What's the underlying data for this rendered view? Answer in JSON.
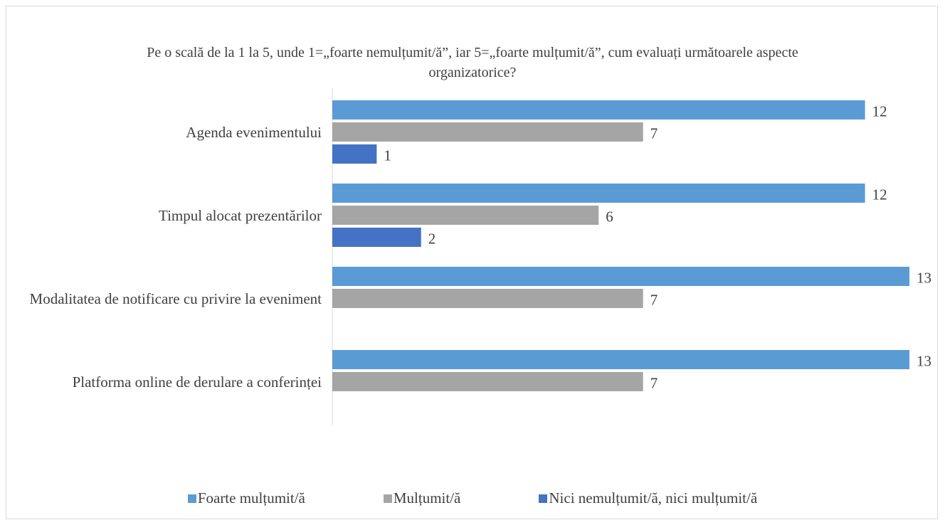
{
  "chart_data": {
    "type": "bar",
    "orientation": "horizontal",
    "title": "Pe o scală de la 1 la 5, unde 1=„foarte nemulțumit/ă”, iar 5=„foarte mulțumit/ă”, cum evaluați următoarele aspecte organizatorice?",
    "categories": [
      "Agenda evenimentului",
      "Timpul alocat prezentărilor",
      "Modalitatea de notificare cu privire la eveniment",
      "Platforma online de derulare a conferinței"
    ],
    "series": [
      {
        "name": "Foarte mulțumit/ă",
        "color": "#5b9bd5",
        "values": [
          12,
          12,
          13,
          13
        ]
      },
      {
        "name": "Mulțumit/ă",
        "color": "#a5a5a5",
        "values": [
          7,
          6,
          7,
          7
        ]
      },
      {
        "name": "Nici nemulțumit/ă, nici mulțumit/ă",
        "color": "#4472c4",
        "values": [
          1,
          2,
          null,
          null
        ]
      }
    ],
    "xlim": [
      0,
      13
    ],
    "legend": "bottom"
  }
}
